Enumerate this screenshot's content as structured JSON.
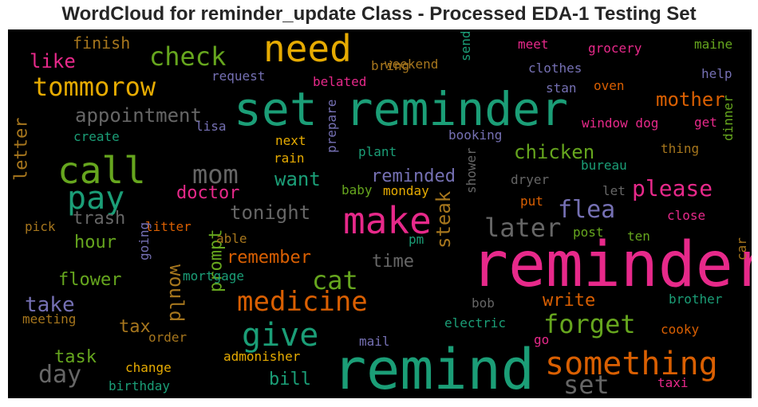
{
  "chart_data": {
    "type": "wordcloud",
    "title": "WordCloud for reminder_update Class - Processed EDA-1 Testing Set",
    "background": "#000000",
    "colormap": [
      "#1b9e77",
      "#d95f02",
      "#7570b3",
      "#e7298a",
      "#66a61e",
      "#e6ab02",
      "#a6761d",
      "#666666"
    ],
    "words": [
      {
        "text": "reminder",
        "size": 78,
        "color": "#e7298a",
        "rotate": 0
      },
      {
        "text": "remind",
        "size": 70,
        "color": "#1b9e77",
        "rotate": 0
      },
      {
        "text": "set reminder",
        "size": 58,
        "color": "#1b9e77",
        "rotate": 0
      },
      {
        "text": "make",
        "size": 46,
        "color": "#e7298a",
        "rotate": 0
      },
      {
        "text": "call",
        "size": 46,
        "color": "#66a61e",
        "rotate": 0
      },
      {
        "text": "need",
        "size": 46,
        "color": "#e6ab02",
        "rotate": 0
      },
      {
        "text": "pay",
        "size": 40,
        "color": "#1b9e77",
        "rotate": 0
      },
      {
        "text": "give",
        "size": 40,
        "color": "#1b9e77",
        "rotate": 0
      },
      {
        "text": "something",
        "size": 40,
        "color": "#d95f02",
        "rotate": 0
      },
      {
        "text": "medicine",
        "size": 34,
        "color": "#d95f02",
        "rotate": 0
      },
      {
        "text": "check",
        "size": 32,
        "color": "#66a61e",
        "rotate": 0
      },
      {
        "text": "tommorow",
        "size": 32,
        "color": "#e6ab02",
        "rotate": 0
      },
      {
        "text": "mom",
        "size": 32,
        "color": "#666666",
        "rotate": 0
      },
      {
        "text": "cat",
        "size": 32,
        "color": "#66a61e",
        "rotate": 0
      },
      {
        "text": "forget",
        "size": 32,
        "color": "#66a61e",
        "rotate": 0
      },
      {
        "text": "later",
        "size": 32,
        "color": "#666666",
        "rotate": 0
      },
      {
        "text": "set",
        "size": 32,
        "color": "#666666",
        "rotate": 0
      },
      {
        "text": "day",
        "size": 30,
        "color": "#666666",
        "rotate": 0
      },
      {
        "text": "flea",
        "size": 30,
        "color": "#7570b3",
        "rotate": 0
      },
      {
        "text": "please",
        "size": 28,
        "color": "#e7298a",
        "rotate": 0
      },
      {
        "text": "take",
        "size": 26,
        "color": "#7570b3",
        "rotate": 0
      },
      {
        "text": "appointment",
        "size": 24,
        "color": "#666666",
        "rotate": 0
      },
      {
        "text": "like",
        "size": 24,
        "color": "#e7298a",
        "rotate": 0
      },
      {
        "text": "chicken",
        "size": 24,
        "color": "#66a61e",
        "rotate": 0
      },
      {
        "text": "mother",
        "size": 24,
        "color": "#d95f02",
        "rotate": 0
      },
      {
        "text": "tonight",
        "size": 24,
        "color": "#666666",
        "rotate": 0
      },
      {
        "text": "would",
        "size": 24,
        "color": "#a6761d",
        "rotate": 90
      },
      {
        "text": "steak",
        "size": 24,
        "color": "#a6761d",
        "rotate": -90
      },
      {
        "text": "want",
        "size": 24,
        "color": "#1b9e77",
        "rotate": 0
      },
      {
        "text": "doctor",
        "size": 22,
        "color": "#e7298a",
        "rotate": 0
      },
      {
        "text": "reminded",
        "size": 22,
        "color": "#7570b3",
        "rotate": 0
      },
      {
        "text": "trash",
        "size": 22,
        "color": "#666666",
        "rotate": 0
      },
      {
        "text": "hour",
        "size": 22,
        "color": "#66a61e",
        "rotate": 0
      },
      {
        "text": "remember",
        "size": 22,
        "color": "#d95f02",
        "rotate": 0
      },
      {
        "text": "time",
        "size": 22,
        "color": "#666666",
        "rotate": 0
      },
      {
        "text": "flower",
        "size": 22,
        "color": "#66a61e",
        "rotate": 0
      },
      {
        "text": "write",
        "size": 22,
        "color": "#d95f02",
        "rotate": 0
      },
      {
        "text": "tax",
        "size": 22,
        "color": "#a6761d",
        "rotate": 0
      },
      {
        "text": "task",
        "size": 22,
        "color": "#66a61e",
        "rotate": 0
      },
      {
        "text": "bill",
        "size": 22,
        "color": "#1b9e77",
        "rotate": 0
      },
      {
        "text": "prompt",
        "size": 22,
        "color": "#66a61e",
        "rotate": -90
      },
      {
        "text": "letter",
        "size": 22,
        "color": "#a6761d",
        "rotate": -90
      },
      {
        "text": "finish",
        "size": 20,
        "color": "#a6761d",
        "rotate": 0
      },
      {
        "text": "bring",
        "size": 16,
        "color": "#a6761d",
        "rotate": 0
      },
      {
        "text": "weekend",
        "size": 16,
        "color": "#a6761d",
        "rotate": 0
      },
      {
        "text": "request",
        "size": 16,
        "color": "#7570b3",
        "rotate": 0
      },
      {
        "text": "belated",
        "size": 16,
        "color": "#e7298a",
        "rotate": 0
      },
      {
        "text": "send",
        "size": 16,
        "color": "#1b9e77",
        "rotate": -90
      },
      {
        "text": "meet",
        "size": 16,
        "color": "#e7298a",
        "rotate": 0
      },
      {
        "text": "grocery",
        "size": 16,
        "color": "#e7298a",
        "rotate": 0
      },
      {
        "text": "maine",
        "size": 16,
        "color": "#66a61e",
        "rotate": 0
      },
      {
        "text": "clothes",
        "size": 16,
        "color": "#7570b3",
        "rotate": 0
      },
      {
        "text": "help",
        "size": 16,
        "color": "#7570b3",
        "rotate": 0
      },
      {
        "text": "stan",
        "size": 16,
        "color": "#7570b3",
        "rotate": 0
      },
      {
        "text": "oven",
        "size": 16,
        "color": "#d95f02",
        "rotate": 0
      },
      {
        "text": "lisa",
        "size": 16,
        "color": "#7570b3",
        "rotate": 0
      },
      {
        "text": "create",
        "size": 16,
        "color": "#1b9e77",
        "rotate": 0
      },
      {
        "text": "next",
        "size": 16,
        "color": "#e6ab02",
        "rotate": 0
      },
      {
        "text": "booking",
        "size": 16,
        "color": "#7570b3",
        "rotate": 0
      },
      {
        "text": "window dog",
        "size": 16,
        "color": "#e7298a",
        "rotate": 0
      },
      {
        "text": "get",
        "size": 16,
        "color": "#e7298a",
        "rotate": 0
      },
      {
        "text": "rain",
        "size": 16,
        "color": "#e6ab02",
        "rotate": 0
      },
      {
        "text": "plant",
        "size": 16,
        "color": "#1b9e77",
        "rotate": 0
      },
      {
        "text": "thing",
        "size": 16,
        "color": "#a6761d",
        "rotate": 0
      },
      {
        "text": "prepare",
        "size": 16,
        "color": "#7570b3",
        "rotate": -90
      },
      {
        "text": "dinner",
        "size": 16,
        "color": "#66a61e",
        "rotate": -90
      },
      {
        "text": "bureau",
        "size": 16,
        "color": "#1b9e77",
        "rotate": 0
      },
      {
        "text": "dryer",
        "size": 16,
        "color": "#666666",
        "rotate": 0
      },
      {
        "text": "baby",
        "size": 16,
        "color": "#66a61e",
        "rotate": 0
      },
      {
        "text": "monday",
        "size": 16,
        "color": "#e6ab02",
        "rotate": 0
      },
      {
        "text": "put",
        "size": 16,
        "color": "#d95f02",
        "rotate": 0
      },
      {
        "text": "let",
        "size": 16,
        "color": "#666666",
        "rotate": 0
      },
      {
        "text": "shower",
        "size": 16,
        "color": "#666666",
        "rotate": -90
      },
      {
        "text": "pick",
        "size": 16,
        "color": "#a6761d",
        "rotate": 0
      },
      {
        "text": "litter",
        "size": 16,
        "color": "#d95f02",
        "rotate": 0
      },
      {
        "text": "able",
        "size": 16,
        "color": "#a6761d",
        "rotate": 0
      },
      {
        "text": "pm",
        "size": 16,
        "color": "#1b9e77",
        "rotate": 0
      },
      {
        "text": "post",
        "size": 16,
        "color": "#66a61e",
        "rotate": 0
      },
      {
        "text": "ten",
        "size": 16,
        "color": "#66a61e",
        "rotate": 0
      },
      {
        "text": "close",
        "size": 16,
        "color": "#e7298a",
        "rotate": 0
      },
      {
        "text": "going",
        "size": 16,
        "color": "#7570b3",
        "rotate": -90
      },
      {
        "text": "mortgage",
        "size": 16,
        "color": "#1b9e77",
        "rotate": 0
      },
      {
        "text": "car",
        "size": 16,
        "color": "#a6761d",
        "rotate": -90
      },
      {
        "text": "bob",
        "size": 16,
        "color": "#666666",
        "rotate": 0
      },
      {
        "text": "brother",
        "size": 16,
        "color": "#1b9e77",
        "rotate": 0
      },
      {
        "text": "meeting",
        "size": 16,
        "color": "#a6761d",
        "rotate": 0
      },
      {
        "text": "electric",
        "size": 16,
        "color": "#1b9e77",
        "rotate": 0
      },
      {
        "text": "order",
        "size": 16,
        "color": "#a6761d",
        "rotate": 0
      },
      {
        "text": "cooky",
        "size": 16,
        "color": "#d95f02",
        "rotate": 0
      },
      {
        "text": "mail",
        "size": 16,
        "color": "#7570b3",
        "rotate": 0
      },
      {
        "text": "go",
        "size": 16,
        "color": "#e7298a",
        "rotate": 0
      },
      {
        "text": "admonisher",
        "size": 16,
        "color": "#e6ab02",
        "rotate": 0
      },
      {
        "text": "change",
        "size": 16,
        "color": "#e6ab02",
        "rotate": 0
      },
      {
        "text": "birthday",
        "size": 16,
        "color": "#1b9e77",
        "rotate": 0
      },
      {
        "text": "taxi",
        "size": 16,
        "color": "#e7298a",
        "rotate": 0
      }
    ]
  }
}
